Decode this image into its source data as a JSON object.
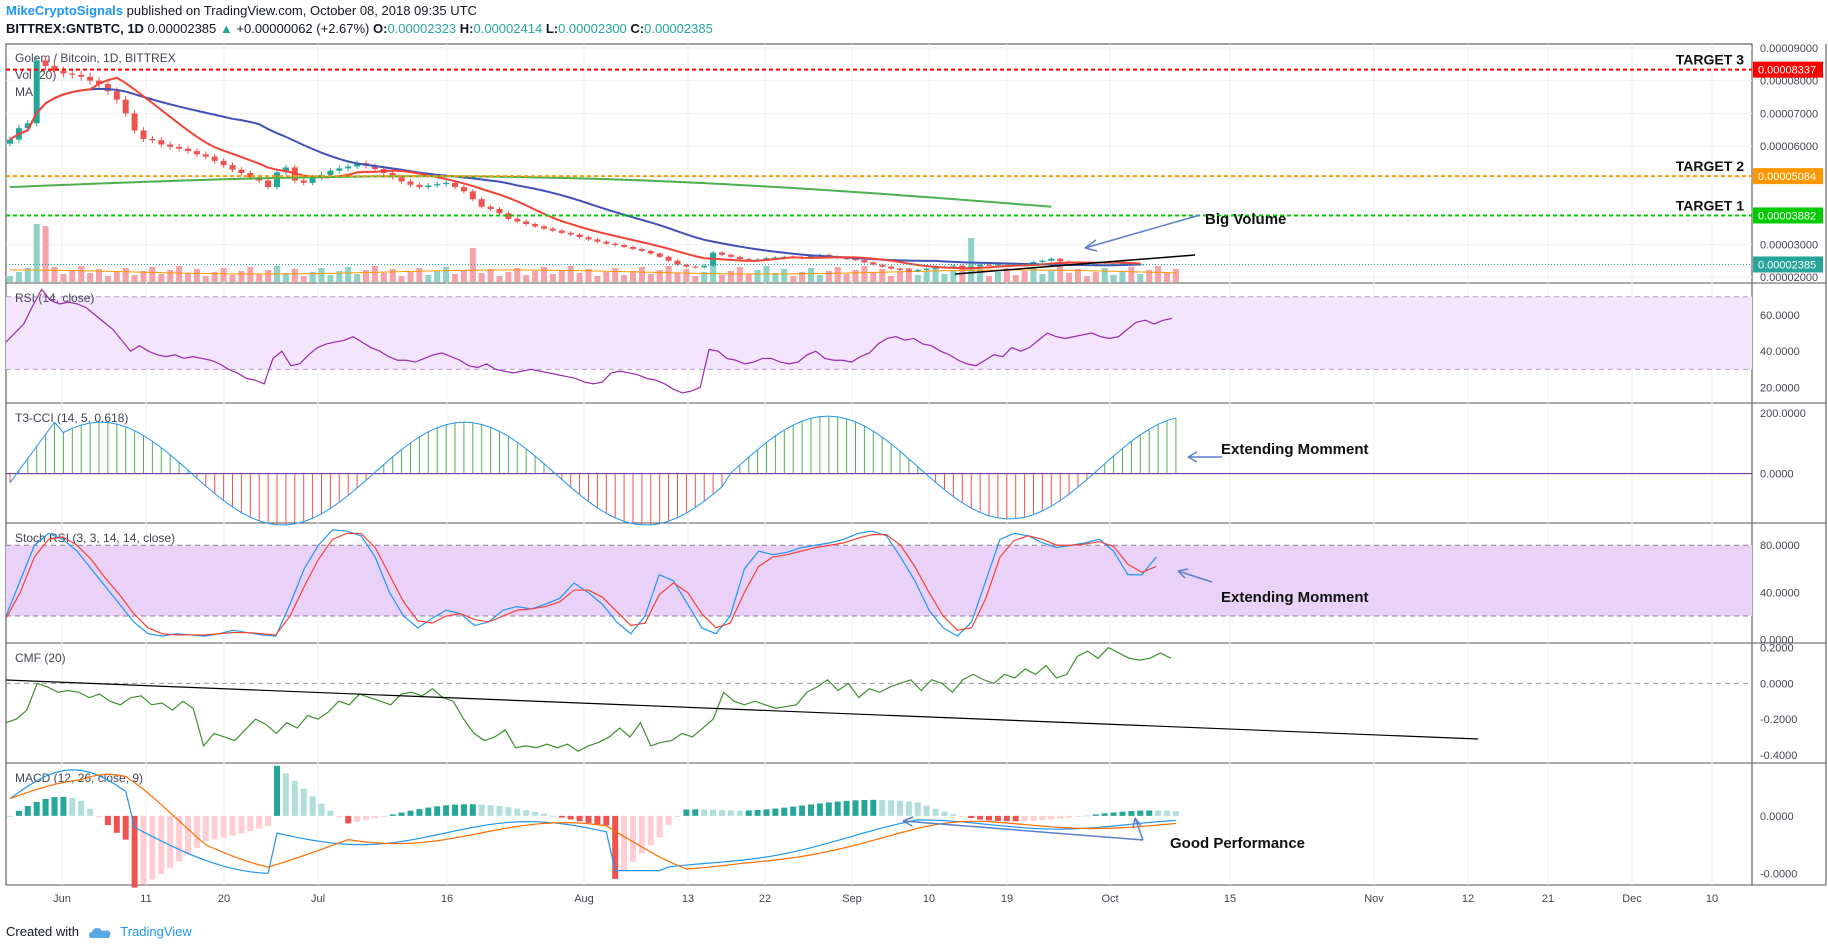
{
  "header": {
    "author": "MikeCryptoSignals",
    "published": "published on TradingView.com, October 08, 2018 09:35 UTC",
    "symbol": "BITTREX:GNTBTC, 1D",
    "close": "0.00002385",
    "change": "+0.00000062 (+2.67%)",
    "o_label": "O:",
    "o": "0.00002323",
    "h_label": "H:",
    "h": "0.00002414",
    "l_label": "L:",
    "l": "0.00002300",
    "c_label": "C:",
    "c": "0.00002385"
  },
  "footer": {
    "created_with": "Created with",
    "brand": "TradingView"
  },
  "icons": {
    "up_arrow": "up-triangle-icon",
    "logo": "tradingview-cloud-icon"
  },
  "colors": {
    "bg": "#ffffff",
    "up": "#26a69a",
    "down": "#ef5350",
    "ma_fast": "#f44336",
    "ma_slow": "#3f51b5",
    "ma_long": "#4caf50",
    "target_red": "#ff0000",
    "target_orange": "#ff9800",
    "target_green": "#00cc00",
    "rsi": "#9c27b0",
    "cmf": "#3f8f2f",
    "stoch_k": "#2196f3",
    "stoch_d": "#f44336",
    "macd": "#2196f3",
    "signal": "#ff6d00",
    "arrow": "#5b7fc9"
  },
  "chart_data": [
    {
      "type": "candlestick",
      "title": "Golem / Bitcoin, 1D, BITTREX",
      "sub_labels": [
        "Vol (20)",
        "MA"
      ],
      "x_ticks": [
        "Jun",
        "11",
        "20",
        "Jul",
        "16",
        "Aug",
        "13",
        "22",
        "Sep",
        "10",
        "19",
        "Oct",
        "15",
        "Nov",
        "12",
        "21",
        "Dec",
        "10"
      ],
      "y_ticks": [
        "0.00009000",
        "0.00008000",
        "0.00007000",
        "0.00006000",
        "0.00005000",
        "0.00004000",
        "0.00003000",
        "0.00002000"
      ],
      "ylim": [
        1.85e-05,
        9.12e-05
      ],
      "close_series": [
        6.2e-05,
        6.55e-05,
        6.7e-05,
        8.62e-05,
        8.45e-05,
        8.3e-05,
        8.22e-05,
        8.18e-05,
        8.12e-05,
        8e-05,
        7.9e-05,
        7.68e-05,
        7.42e-05,
        7e-05,
        6.48e-05,
        6.22e-05,
        6.18e-05,
        6.05e-05,
        5.98e-05,
        5.92e-05,
        5.85e-05,
        5.75e-05,
        5.68e-05,
        5.55e-05,
        5.42e-05,
        5.28e-05,
        5.18e-05,
        5.05e-05,
        4.95e-05,
        4.75e-05,
        5.2e-05,
        5.35e-05,
        4.95e-05,
        4.88e-05,
        5.05e-05,
        5.12e-05,
        5.25e-05,
        5.32e-05,
        5.38e-05,
        5.48e-05,
        5.4e-05,
        5.3e-05,
        5.18e-05,
        5.05e-05,
        4.92e-05,
        4.82e-05,
        4.75e-05,
        4.8e-05,
        4.84e-05,
        4.88e-05,
        4.75e-05,
        4.62e-05,
        4.38e-05,
        4.15e-05,
        4.08e-05,
        3.95e-05,
        3.78e-05,
        3.7e-05,
        3.62e-05,
        3.55e-05,
        3.48e-05,
        3.42e-05,
        3.35e-05,
        3.3e-05,
        3.22e-05,
        3.15e-05,
        3.08e-05,
        3.02e-05,
        2.98e-05,
        2.92e-05,
        2.86e-05,
        2.8e-05,
        2.72e-05,
        2.62e-05,
        2.5e-05,
        2.38e-05,
        2.32e-05,
        2.3e-05,
        2.35e-05,
        2.75e-05,
        2.68e-05,
        2.62e-05,
        2.55e-05,
        2.52e-05,
        2.54e-05,
        2.58e-05,
        2.6e-05,
        2.62e-05,
        2.6e-05,
        2.58e-05,
        2.65e-05,
        2.68e-05,
        2.62e-05,
        2.58e-05,
        2.56e-05,
        2.52e-05,
        2.45e-05,
        2.38e-05,
        2.32e-05,
        2.26e-05,
        2.22e-05,
        2.18e-05,
        2.22e-05,
        2.26e-05,
        2.3e-05,
        2.32e-05,
        2.35e-05,
        2.28e-05,
        2.32e-05,
        2.38e-05,
        2.36e-05,
        2.42e-05,
        2.4e-05,
        2.38e-05,
        2.36e-05,
        2.46e-05,
        2.5e-05,
        2.56e-05,
        2.48e-05,
        2.46e-05,
        2.44e-05,
        2.4e-05,
        2.36e-05,
        2.38e-05,
        2.4e-05,
        2.42e-05,
        2.38e-05,
        2.39e-05
      ],
      "levels": [
        {
          "name": "TARGET 3",
          "value": 8.337e-05,
          "label": "0.00008337",
          "color": "#ff0000"
        },
        {
          "name": "TARGET 2",
          "value": 5.084e-05,
          "label": "0.00005084",
          "color": "#ff9800"
        },
        {
          "name": "TARGET 1",
          "value": 3.882e-05,
          "label": "0.00003882",
          "color": "#00cc00"
        }
      ],
      "last_price": {
        "value": 2.385e-05,
        "label": "0.00002385"
      },
      "annotations": [
        {
          "text": "Big Volume"
        }
      ]
    },
    {
      "type": "line",
      "title": "RSI (14, close)",
      "y_ticks": [
        "60.0000",
        "40.0000",
        "20.0000"
      ],
      "ylim": [
        12,
        77
      ],
      "band": [
        30,
        70
      ],
      "values": [
        45,
        50,
        55,
        65,
        74,
        68,
        66,
        67,
        66,
        64,
        60,
        56,
        52,
        46,
        40,
        43,
        40,
        38,
        37,
        38,
        36,
        37,
        36,
        35,
        33,
        30,
        28,
        25,
        24,
        22,
        36,
        40,
        32,
        33,
        38,
        42,
        44,
        45,
        46,
        48,
        45,
        42,
        40,
        37,
        35,
        35,
        34,
        36,
        38,
        39,
        37,
        35,
        32,
        31,
        33,
        30,
        29,
        28,
        29,
        30,
        29,
        28,
        27,
        26,
        25,
        23,
        22,
        23,
        28,
        29,
        28,
        27,
        25,
        24,
        22,
        19,
        17,
        18,
        20,
        41,
        40,
        36,
        35,
        33,
        34,
        36,
        36,
        34,
        33,
        34,
        38,
        40,
        36,
        35,
        35,
        34,
        37,
        39,
        44,
        47,
        48,
        46,
        47,
        44,
        43,
        40,
        38,
        35,
        33,
        32,
        35,
        38,
        37,
        42,
        40,
        42,
        46,
        50,
        48,
        47,
        48,
        49,
        50,
        48,
        47,
        48,
        52,
        56,
        57,
        55,
        57,
        58
      ],
      "colors": {
        "line": "#9c27b0"
      }
    },
    {
      "type": "histogram",
      "title": "T3-CCI (14, 5, 0.618)",
      "y_ticks": [
        "200.0000",
        "0.0000"
      ],
      "ylim": [
        -160,
        230
      ],
      "annotations": [
        {
          "text": "Extending Momment"
        }
      ]
    },
    {
      "type": "line",
      "title": "Stoch RSI (3, 3, 14, 14, close)",
      "y_ticks": [
        "80.0000",
        "40.0000",
        "0.0000"
      ],
      "ylim": [
        -2,
        98
      ],
      "band": [
        20,
        80
      ],
      "series": [
        {
          "values": [
            20,
            50,
            80,
            90,
            85,
            75,
            60,
            45,
            30,
            15,
            5,
            3,
            5,
            4,
            3,
            5,
            8,
            6,
            4,
            3,
            30,
            60,
            80,
            93,
            92,
            88,
            70,
            40,
            20,
            10,
            18,
            25,
            22,
            12,
            15,
            25,
            28,
            26,
            30,
            35,
            48,
            40,
            30,
            15,
            5,
            20,
            55,
            50,
            30,
            10,
            5,
            20,
            60,
            75,
            72,
            74,
            78,
            80,
            82,
            85,
            90,
            92,
            88,
            70,
            50,
            25,
            10,
            3,
            15,
            50,
            85,
            90,
            88,
            82,
            78,
            80,
            82,
            85,
            75,
            55,
            55,
            70
          ]
        },
        {
          "values": [
            18,
            40,
            70,
            85,
            87,
            80,
            68,
            52,
            38,
            22,
            10,
            5,
            4,
            4,
            4,
            5,
            6,
            6,
            5,
            4,
            20,
            45,
            68,
            85,
            90,
            90,
            78,
            55,
            32,
            16,
            14,
            20,
            22,
            17,
            15,
            20,
            25,
            26,
            28,
            32,
            42,
            42,
            36,
            24,
            12,
            14,
            38,
            48,
            40,
            22,
            10,
            14,
            40,
            62,
            70,
            72,
            75,
            78,
            80,
            82,
            86,
            89,
            89,
            80,
            62,
            40,
            20,
            8,
            10,
            35,
            70,
            84,
            88,
            85,
            80,
            80,
            81,
            83,
            79,
            64,
            57,
            62
          ]
        }
      ],
      "annotations": [
        {
          "text": "Extending Momment"
        }
      ]
    },
    {
      "type": "line",
      "title": "CMF (20)",
      "y_ticks": [
        "0.2000",
        "0.0000",
        "-0.2000",
        "-0.4000"
      ],
      "ylim": [
        -0.44,
        0.22
      ],
      "values": [
        -0.22,
        -0.2,
        -0.15,
        0.0,
        -0.02,
        -0.05,
        -0.04,
        -0.05,
        -0.08,
        -0.06,
        -0.1,
        -0.12,
        -0.08,
        -0.07,
        -0.12,
        -0.11,
        -0.15,
        -0.1,
        -0.14,
        -0.35,
        -0.28,
        -0.3,
        -0.32,
        -0.26,
        -0.2,
        -0.23,
        -0.28,
        -0.22,
        -0.25,
        -0.18,
        -0.2,
        -0.16,
        -0.1,
        -0.12,
        -0.06,
        -0.08,
        -0.1,
        -0.12,
        -0.06,
        -0.05,
        -0.07,
        -0.03,
        -0.08,
        -0.1,
        -0.2,
        -0.28,
        -0.32,
        -0.3,
        -0.26,
        -0.36,
        -0.35,
        -0.36,
        -0.34,
        -0.36,
        -0.34,
        -0.38,
        -0.35,
        -0.33,
        -0.3,
        -0.25,
        -0.3,
        -0.22,
        -0.35,
        -0.33,
        -0.32,
        -0.28,
        -0.3,
        -0.25,
        -0.2,
        -0.05,
        -0.1,
        -0.12,
        -0.1,
        -0.12,
        -0.14,
        -0.13,
        -0.12,
        -0.05,
        -0.02,
        0.02,
        -0.04,
        0.0,
        -0.08,
        -0.03,
        -0.05,
        -0.02,
        0.0,
        0.02,
        -0.04,
        0.02,
        0.0,
        -0.05,
        0.02,
        0.05,
        0.02,
        0.0,
        0.05,
        0.03,
        0.08,
        0.05,
        0.1,
        0.03,
        0.05,
        0.15,
        0.18,
        0.14,
        0.2,
        0.17,
        0.14,
        0.13,
        0.14,
        0.17,
        0.14
      ]
    },
    {
      "type": "macd",
      "title": "MACD (12, 26, close, 9)",
      "y_ticks": [
        "0.0000",
        "-0.0000"
      ],
      "ylim": [
        -1.2,
        0.9
      ],
      "annotations": [
        {
          "text": "Good Performance"
        }
      ]
    }
  ]
}
